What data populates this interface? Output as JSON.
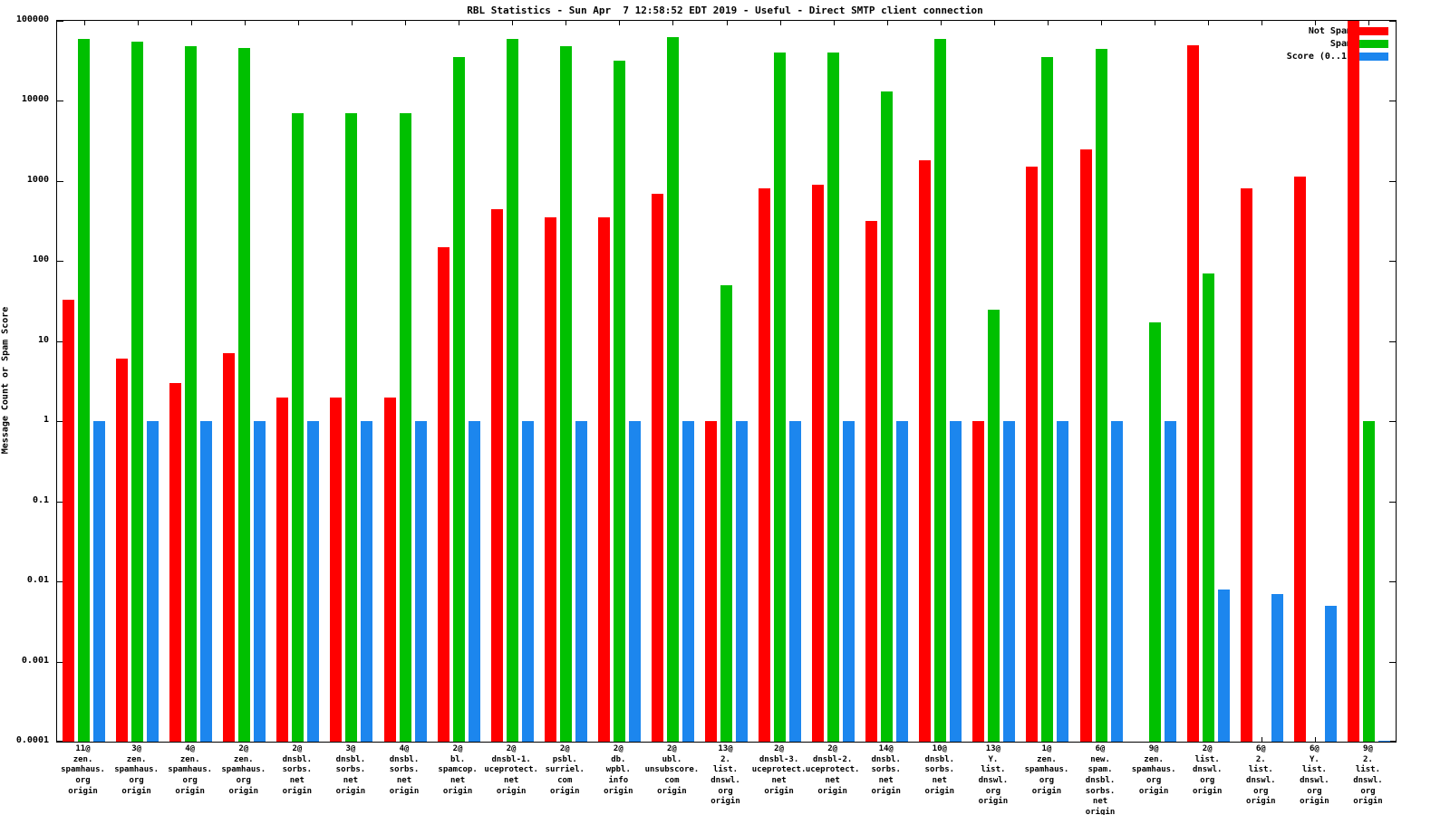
{
  "title": "RBL Statistics - Sun Apr  7 12:58:52 EDT 2019 - Useful - Direct SMTP client connection",
  "ylabel": "Message Count or Spam Score",
  "chart_data": {
    "type": "bar",
    "yscale": "log",
    "ylim": [
      0.0001,
      100000
    ],
    "ytick_labels": [
      "100000",
      "10000",
      "1000",
      "100",
      "10",
      "1",
      "0.1",
      "0.01",
      "0.001",
      "0.0001"
    ],
    "grid": false,
    "legend_position": "top-right",
    "categories": [
      [
        "11@",
        "zen.",
        "spamhaus.",
        "org",
        "origin"
      ],
      [
        "3@",
        "zen.",
        "spamhaus.",
        "org",
        "origin"
      ],
      [
        "4@",
        "zen.",
        "spamhaus.",
        "org",
        "origin"
      ],
      [
        "2@",
        "zen.",
        "spamhaus.",
        "org",
        "origin"
      ],
      [
        "2@",
        "dnsbl.",
        "sorbs.",
        "net",
        "origin"
      ],
      [
        "3@",
        "dnsbl.",
        "sorbs.",
        "net",
        "origin"
      ],
      [
        "4@",
        "dnsbl.",
        "sorbs.",
        "net",
        "origin"
      ],
      [
        "2@",
        "bl.",
        "spamcop.",
        "net",
        "origin"
      ],
      [
        "2@",
        "dnsbl-1.",
        "uceprotect.",
        "net",
        "origin"
      ],
      [
        "2@",
        "psbl.",
        "surriel.",
        "com",
        "origin"
      ],
      [
        "2@",
        "db.",
        "wpbl.",
        "info",
        "origin"
      ],
      [
        "2@",
        "ubl.",
        "unsubscore.",
        "com",
        "origin"
      ],
      [
        "13@",
        "2.",
        "list.",
        "dnswl.",
        "org",
        "origin"
      ],
      [
        "2@",
        "dnsbl-3.",
        "uceprotect.",
        "net",
        "origin"
      ],
      [
        "2@",
        "dnsbl-2.",
        "uceprotect.",
        "net",
        "origin"
      ],
      [
        "14@",
        "dnsbl.",
        "sorbs.",
        "net",
        "origin"
      ],
      [
        "10@",
        "dnsbl.",
        "sorbs.",
        "net",
        "origin"
      ],
      [
        "13@",
        "Y.",
        "list.",
        "dnswl.",
        "org",
        "origin"
      ],
      [
        "1@",
        "zen.",
        "spamhaus.",
        "org",
        "origin"
      ],
      [
        "6@",
        "new.",
        "spam.",
        "dnsbl.",
        "sorbs.",
        "net",
        "origin"
      ],
      [
        "9@",
        "zen.",
        "spamhaus.",
        "org",
        "origin"
      ],
      [
        "2@",
        "list.",
        "dnswl.",
        "org",
        "origin"
      ],
      [
        "6@",
        "2.",
        "list.",
        "dnswl.",
        "org",
        "origin"
      ],
      [
        "6@",
        "Y.",
        "list.",
        "dnswl.",
        "org",
        "origin"
      ],
      [
        "9@",
        "2.",
        "list.",
        "dnswl.",
        "org",
        "origin"
      ]
    ],
    "series": [
      {
        "name": "Not Spam",
        "color": "#ff0000",
        "values": [
          33,
          6,
          3,
          7,
          2,
          2,
          2,
          150,
          450,
          350,
          350,
          700,
          1,
          820,
          900,
          320,
          1800,
          1,
          1500,
          2500,
          0,
          50000,
          800,
          1150,
          100000
        ]
      },
      {
        "name": "Spam",
        "color": "#00c000",
        "values": [
          60000,
          55000,
          48000,
          46000,
          7000,
          7000,
          7000,
          35000,
          60000,
          48000,
          32000,
          62000,
          50,
          40000,
          40000,
          13000,
          60000,
          25,
          35000,
          45000,
          17,
          70,
          0,
          0,
          1
        ]
      },
      {
        "name": "Score (0..1)",
        "color": "#1c86ee",
        "values": [
          1,
          1,
          1,
          1,
          1,
          1,
          1,
          1,
          1,
          1,
          1,
          1,
          1,
          1,
          1,
          1,
          1,
          1,
          1,
          1,
          1,
          0.008,
          0.007,
          0.005,
          0.0001
        ]
      }
    ]
  }
}
